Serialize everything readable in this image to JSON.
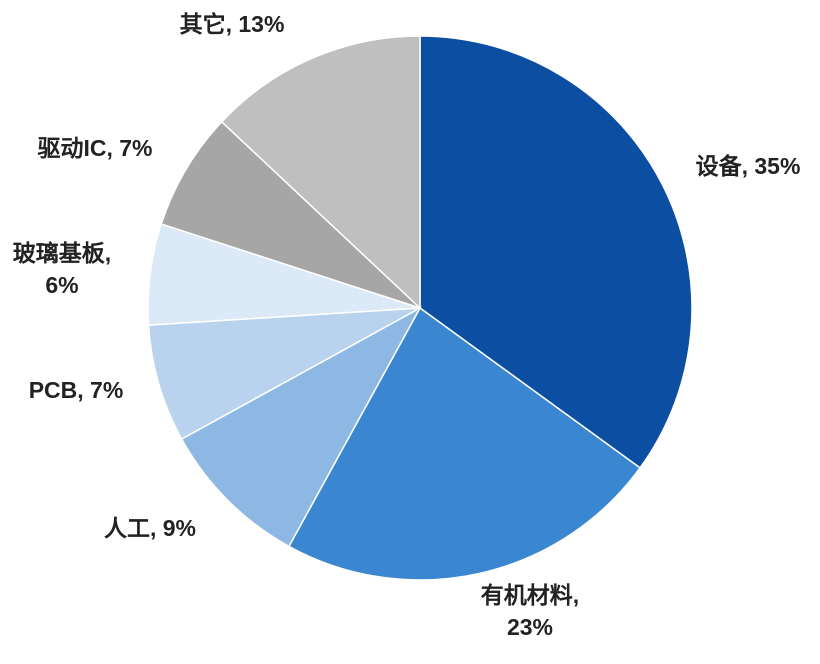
{
  "chart_data": {
    "type": "pie",
    "values": [
      35,
      23,
      9,
      7,
      6,
      7,
      13
    ],
    "value_labels": [
      "设备, 35%",
      "有机材料,\n23%",
      "人工, 9%",
      "PCB, 7%",
      "玻璃基板,\n6%",
      "驱动IC, 7%",
      "其它, 13%"
    ],
    "colors": [
      "#0b4ea2",
      "#3a86d0",
      "#8db8e3",
      "#b9d3ee",
      "#dce9f6",
      "#a6a6a6",
      "#bfbfbf"
    ]
  }
}
